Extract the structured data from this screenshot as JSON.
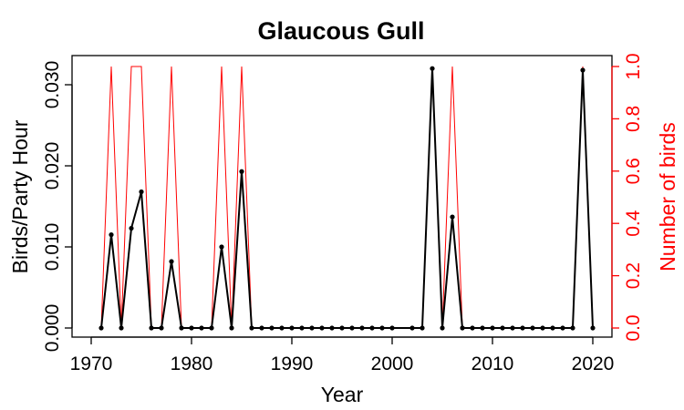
{
  "chart_data": {
    "type": "line",
    "title": "Glaucous Gull",
    "xlabel": "Year",
    "ylabel": "Birds/Party Hour",
    "ylabel_right": "Number of birds",
    "xlim": [
      1970,
      2020
    ],
    "ylim": [
      0,
      0.032
    ],
    "ylim_right": [
      0,
      1
    ],
    "x_ticks": [
      "1970",
      "1980",
      "1990",
      "2000",
      "2010",
      "2020"
    ],
    "y_ticks": [
      "0.000",
      "0.010",
      "0.020",
      "0.030"
    ],
    "y_ticks_right": [
      "0.0",
      "0.2",
      "0.4",
      "0.6",
      "0.8",
      "1.0"
    ],
    "grid": false,
    "series": [
      {
        "axis": "left",
        "color": "#000000",
        "points": [
          [
            1971,
            0
          ],
          [
            1972,
            0.0115
          ],
          [
            1973,
            0
          ],
          [
            1974,
            0.0123
          ],
          [
            1975,
            0.0168
          ],
          [
            1976,
            0
          ],
          [
            1977,
            0
          ],
          [
            1978,
            0.0082
          ],
          [
            1979,
            0
          ],
          [
            1980,
            0
          ],
          [
            1981,
            0
          ],
          [
            1982,
            0
          ],
          [
            1983,
            0.01
          ],
          [
            1984,
            0
          ],
          [
            1985,
            0.0193
          ],
          [
            1986,
            0
          ],
          [
            1987,
            0
          ],
          [
            1988,
            0
          ],
          [
            1989,
            0
          ],
          [
            1990,
            0
          ],
          [
            1991,
            0
          ],
          [
            1992,
            0
          ],
          [
            1993,
            0
          ],
          [
            1994,
            0
          ],
          [
            1995,
            0
          ],
          [
            1996,
            0
          ],
          [
            1997,
            0
          ],
          [
            1998,
            0
          ],
          [
            1999,
            0
          ],
          [
            2000,
            0
          ],
          [
            2002,
            0
          ],
          [
            2003,
            0
          ],
          [
            2004,
            0.032
          ],
          [
            2005,
            0
          ],
          [
            2006,
            0.0137
          ],
          [
            2007,
            0
          ],
          [
            2008,
            0
          ],
          [
            2009,
            0
          ],
          [
            2010,
            0
          ],
          [
            2011,
            0
          ],
          [
            2012,
            0
          ],
          [
            2013,
            0
          ],
          [
            2014,
            0
          ],
          [
            2015,
            0
          ],
          [
            2016,
            0
          ],
          [
            2017,
            0
          ],
          [
            2018,
            0
          ],
          [
            2019,
            0.0318
          ],
          [
            2020,
            0
          ]
        ]
      },
      {
        "axis": "right",
        "color": "#ff0000",
        "points": [
          [
            1971,
            0
          ],
          [
            1972,
            1
          ],
          [
            1973,
            0
          ],
          [
            1974,
            1
          ],
          [
            1975,
            1
          ],
          [
            1976,
            0
          ],
          [
            1977,
            0
          ],
          [
            1978,
            1
          ],
          [
            1979,
            0
          ],
          [
            1980,
            0
          ],
          [
            1981,
            0
          ],
          [
            1982,
            0
          ],
          [
            1983,
            1
          ],
          [
            1984,
            0
          ],
          [
            1985,
            1
          ],
          [
            1986,
            0
          ],
          [
            1987,
            0
          ],
          [
            1988,
            0
          ],
          [
            1989,
            0
          ],
          [
            1990,
            0
          ],
          [
            1991,
            0
          ],
          [
            1992,
            0
          ],
          [
            1993,
            0
          ],
          [
            1994,
            0
          ],
          [
            1995,
            0
          ],
          [
            1996,
            0
          ],
          [
            1997,
            0
          ],
          [
            1998,
            0
          ],
          [
            1999,
            0
          ],
          [
            2000,
            0
          ],
          [
            2002,
            0
          ],
          [
            2003,
            0
          ],
          [
            2004,
            1
          ],
          [
            2005,
            0
          ],
          [
            2006,
            1
          ],
          [
            2007,
            0
          ],
          [
            2008,
            0
          ],
          [
            2009,
            0
          ],
          [
            2010,
            0
          ],
          [
            2011,
            0
          ],
          [
            2012,
            0
          ],
          [
            2013,
            0
          ],
          [
            2014,
            0
          ],
          [
            2015,
            0
          ],
          [
            2016,
            0
          ],
          [
            2017,
            0
          ],
          [
            2018,
            0
          ],
          [
            2019,
            1
          ],
          [
            2020,
            0
          ]
        ]
      }
    ]
  }
}
